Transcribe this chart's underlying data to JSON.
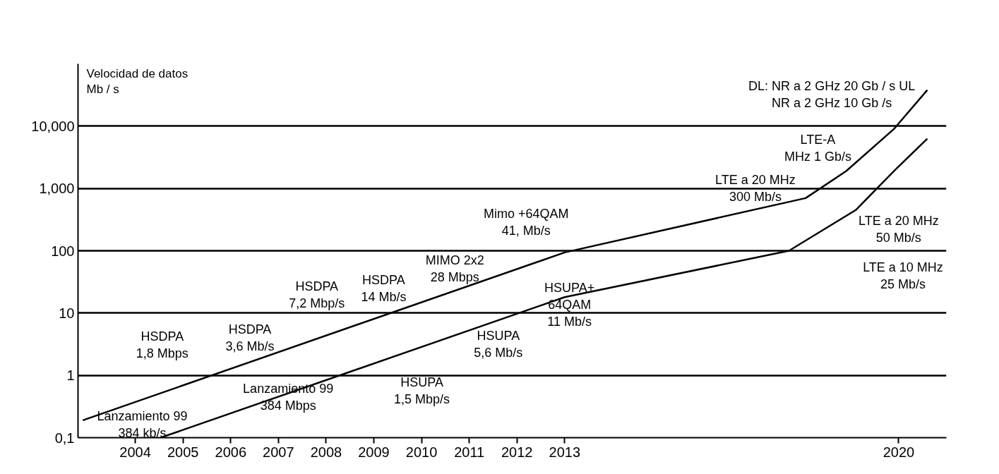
{
  "chart_data": {
    "type": "line",
    "ylabel": "Velocidad de datos\nMb / s",
    "log": "y",
    "grid": "y",
    "line_style": "solid",
    "marker": "none",
    "xlim": [
      2002.8,
      2021
    ],
    "xticks": [
      2004,
      2005,
      2006,
      2007,
      2008,
      2009,
      2010,
      2011,
      2012,
      2013,
      2020
    ],
    "ylim": [
      0.1,
      100000
    ],
    "yticks": [
      {
        "value": 0.1,
        "label": "0,1"
      },
      1,
      10,
      100,
      {
        "value": 1000,
        "label": "1,000"
      },
      {
        "value": 10000,
        "label": "10,000"
      }
    ],
    "series": [
      {
        "color": "#000000",
        "x": [
          2002.9,
          2013,
          2018.05,
          2018.9,
          2019.9,
          2020.6
        ],
        "values": [
          0.19,
          94,
          700,
          1900,
          9000,
          38000
        ]
      },
      {
        "color": "#000000",
        "x": [
          2004.53,
          2013,
          2017.7,
          2019.1,
          2019.9,
          2020.6
        ],
        "values": [
          0.1,
          18,
          100,
          450,
          1900,
          6300
        ]
      }
    ],
    "annotations": [
      "Lanzamiento 99\n384 kb/s",
      "HSDPA\n1,8 Mbps",
      "HSDPA\n3,6 Mb/s",
      "HSDPA\n7,2 Mbp/s",
      "HSDPA\n14 Mb/s",
      "MIMO 2x2\n28 Mbps",
      "Mimo +64QAM\n41, Mb/s",
      "LTE a 20 MHz\n300 Mb/s",
      "LTE-A\nMHz 1 Gb/s",
      "DL: NR a 2 GHz 20 Gb / s UL\nNR a 2 GHz 10 Gb /s",
      "Lanzamiento 99\n384 Mbps",
      "HSUPA\n1,5 Mbp/s",
      "HSUPA\n5,6 Mb/s",
      "HSUPA+\n64QAM\n11 Mb/s",
      "LTE a 20 MHz\n50 Mb/s",
      "LTE a 10 MHz\n25 Mb/s"
    ]
  }
}
